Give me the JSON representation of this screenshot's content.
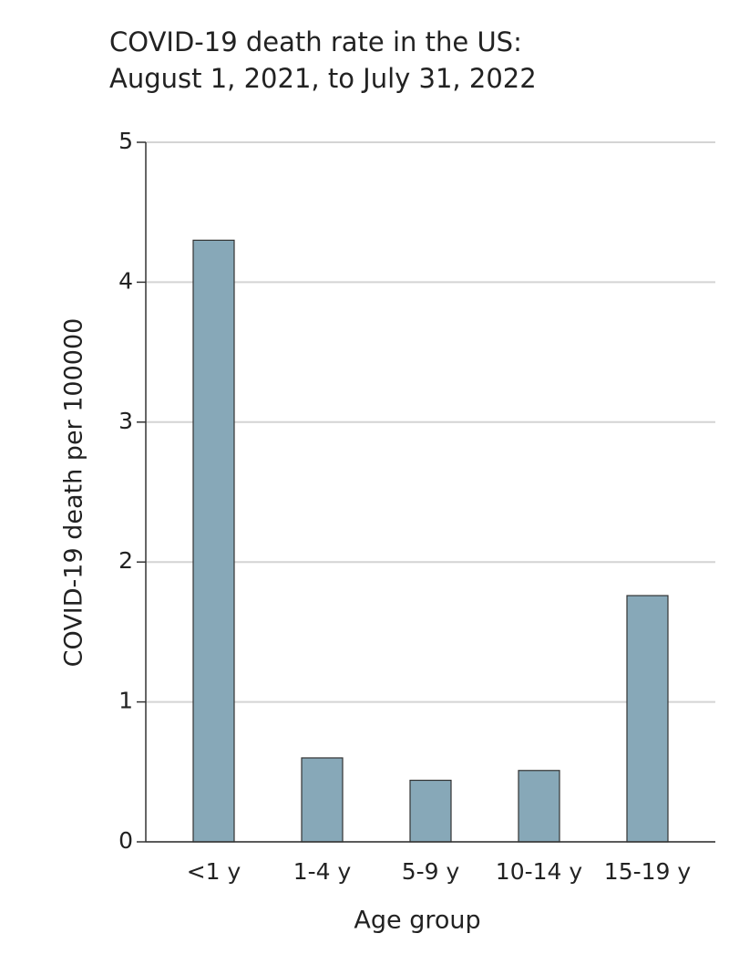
{
  "chart_data": {
    "type": "bar",
    "title": "COVID-19 death rate in the US:",
    "subtitle": "August 1, 2021, to July 31, 2022",
    "x_label": "Age group",
    "y_label": "COVID-19 death per 100000",
    "categories": [
      "<1 y",
      "1-4 y",
      "5-9 y",
      "10-14 y",
      "15-19 y"
    ],
    "values": [
      4.3,
      0.6,
      0.44,
      0.51,
      1.76
    ],
    "color": "#87a8b8",
    "ylim": [
      0,
      5
    ],
    "yticks": [
      0,
      1,
      2,
      3,
      4,
      5
    ],
    "grid": true
  }
}
